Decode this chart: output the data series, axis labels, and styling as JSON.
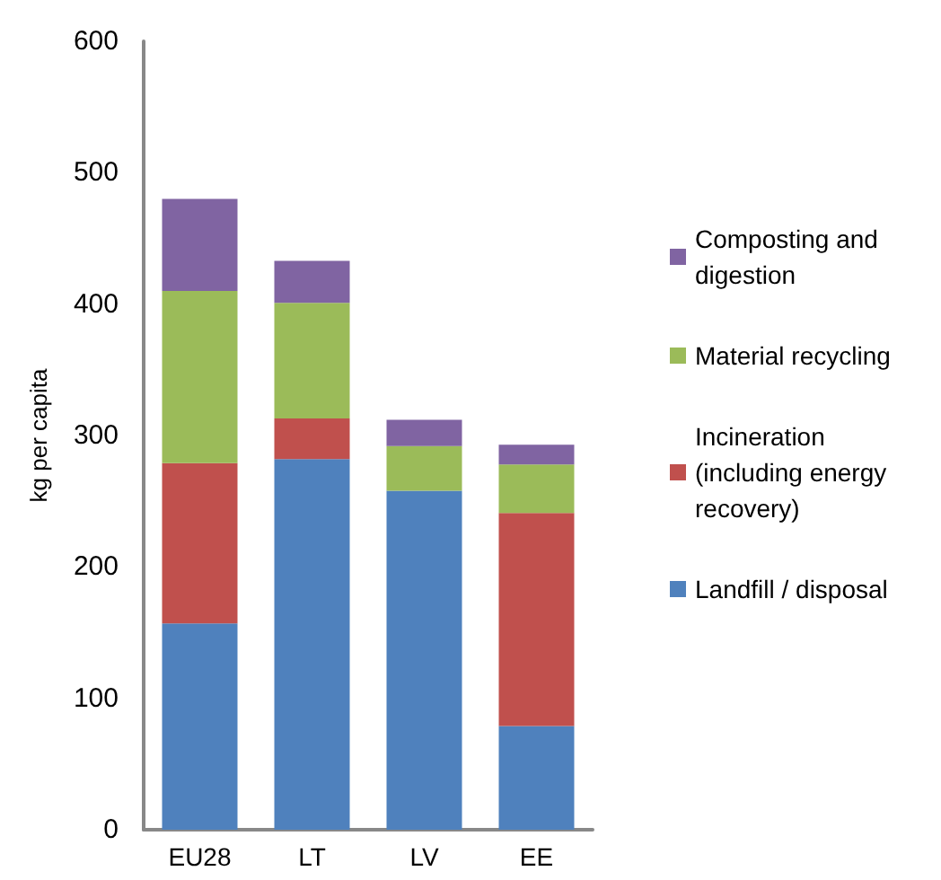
{
  "chart_data": {
    "type": "bar",
    "ylabel": "kg per capita",
    "categories": [
      "EU28",
      "LT",
      "LV",
      "EE"
    ],
    "stacked": true,
    "ylim": [
      0,
      600
    ],
    "yticks": [
      0,
      100,
      200,
      300,
      400,
      500,
      600
    ],
    "grid": false,
    "legend": "right",
    "series": [
      {
        "name": "Landfill / disposal",
        "color": "#4f81bd",
        "values": [
          157,
          282,
          258,
          79
        ]
      },
      {
        "name": "Incineration\n(including energy\nrecovery)",
        "color": "#c0504d",
        "values": [
          122,
          31,
          0,
          162
        ]
      },
      {
        "name": "Material recycling",
        "color": "#9bbb59",
        "values": [
          131,
          88,
          34,
          37
        ]
      },
      {
        "name": "Composting and\ndigestion",
        "color": "#8064a2",
        "values": [
          70,
          32,
          20,
          15
        ]
      }
    ]
  }
}
